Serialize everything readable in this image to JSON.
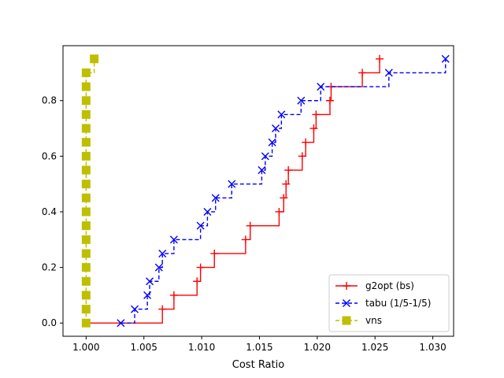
{
  "chart_data": {
    "type": "line",
    "title": "",
    "xlabel": "Cost Ratio",
    "ylabel": "",
    "xlim": [
      0.998,
      1.0318
    ],
    "ylim": [
      -0.0475,
      0.9975
    ],
    "xticks": [
      1.0,
      1.005,
      1.01,
      1.015,
      1.02,
      1.025,
      1.03
    ],
    "xtick_labels": [
      "1.000",
      "1.005",
      "1.010",
      "1.015",
      "1.020",
      "1.025",
      "1.030"
    ],
    "yticks": [
      0.0,
      0.2,
      0.4,
      0.6,
      0.8
    ],
    "ytick_labels": [
      "0.0",
      "0.2",
      "0.4",
      "0.6",
      "0.8"
    ],
    "grid": false,
    "legend_position": "lower-right",
    "series": [
      {
        "name": "g2opt (bs)",
        "color": "#ff0000",
        "linestyle": "solid",
        "step": "post",
        "marker": "plus",
        "x": [
          1.0,
          1.0066,
          1.0076,
          1.0096,
          1.0099,
          1.0111,
          1.0138,
          1.0142,
          1.0167,
          1.0171,
          1.0173,
          1.0175,
          1.0187,
          1.019,
          1.0197,
          1.0199,
          1.0211,
          1.0212,
          1.0239,
          1.0254
        ],
        "y": [
          0.0,
          0.05,
          0.1,
          0.15,
          0.2,
          0.25,
          0.3,
          0.35,
          0.4,
          0.45,
          0.5,
          0.55,
          0.6,
          0.65,
          0.7,
          0.75,
          0.8,
          0.85,
          0.9,
          0.95
        ]
      },
      {
        "name": "tabu (1/5-1/5)",
        "color": "#0000ff",
        "linestyle": "dashed",
        "step": "post",
        "marker": "x",
        "x": [
          1.003,
          1.0042,
          1.0053,
          1.0055,
          1.0063,
          1.0066,
          1.0076,
          1.0099,
          1.0105,
          1.0112,
          1.0126,
          1.0152,
          1.0155,
          1.0161,
          1.0164,
          1.0169,
          1.0186,
          1.0203,
          1.0262,
          1.0311
        ],
        "y": [
          0.0,
          0.05,
          0.1,
          0.15,
          0.2,
          0.25,
          0.3,
          0.35,
          0.4,
          0.45,
          0.5,
          0.55,
          0.6,
          0.65,
          0.7,
          0.75,
          0.8,
          0.85,
          0.9,
          0.95
        ]
      },
      {
        "name": "vns",
        "color": "#bfbf00",
        "linestyle": "dashed",
        "step": "post",
        "marker": "square",
        "x": [
          1.0,
          1.0,
          1.0,
          1.0,
          1.0,
          1.0,
          1.0,
          1.0,
          1.0,
          1.0,
          1.0,
          1.0,
          1.0,
          1.0,
          1.0,
          1.0,
          1.0,
          1.0,
          1.0,
          1.0007
        ],
        "y": [
          0.0,
          0.05,
          0.1,
          0.15,
          0.2,
          0.25,
          0.3,
          0.35,
          0.4,
          0.45,
          0.5,
          0.55,
          0.6,
          0.65,
          0.7,
          0.75,
          0.8,
          0.85,
          0.9,
          0.95
        ]
      }
    ]
  }
}
